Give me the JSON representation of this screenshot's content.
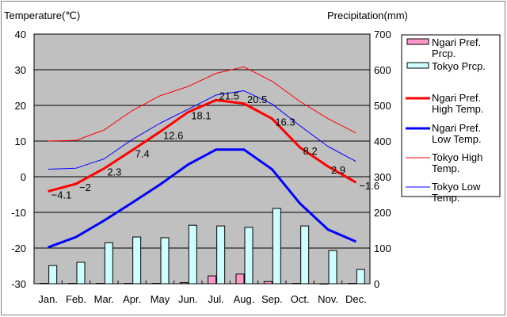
{
  "chart_data": {
    "type": "bar+line",
    "left_axis_title": "Temperature(℃)",
    "right_axis_title": "Precipitation(mm)",
    "categories": [
      "Jan.",
      "Feb.",
      "Mar.",
      "Apr.",
      "May",
      "Jun.",
      "Jul.",
      "Aug.",
      "Sep.",
      "Oct.",
      "Nov.",
      "Dec."
    ],
    "temp_ylim": [
      -30,
      40
    ],
    "temp_ticks": [
      "40",
      "30",
      "20",
      "10",
      "0",
      "-10",
      "-20",
      "-30"
    ],
    "precip_ylim": [
      0,
      700
    ],
    "precip_ticks": [
      "700",
      "600",
      "500",
      "400",
      "300",
      "200",
      "100",
      "0"
    ],
    "grid": true,
    "legend_position": "right",
    "bar_series": [
      {
        "name": "Ngari Pref. Prcp.",
        "color": "#ff99cc",
        "values": [
          1,
          1,
          1,
          1,
          1,
          3,
          22,
          27,
          6,
          1,
          0,
          1
        ]
      },
      {
        "name": "Tokyo Prcp.",
        "color": "#ccffff",
        "values": [
          51,
          60,
          115,
          131,
          129,
          164,
          162,
          158,
          211,
          162,
          93,
          40
        ]
      }
    ],
    "line_series": [
      {
        "name": "Ngari Pref. High Temp.",
        "color": "#ff0000",
        "thick": true,
        "labels": true,
        "values": [
          -4.1,
          -2,
          2.3,
          7.4,
          12.6,
          18.1,
          21.5,
          20.5,
          16.3,
          8.2,
          2.9,
          -1.6
        ]
      },
      {
        "name": "Ngari Pref. Low Temp.",
        "color": "#0000ff",
        "thick": true,
        "labels": false,
        "values": [
          -19.8,
          -16.9,
          -12.3,
          -7.3,
          -2.2,
          3.4,
          7.6,
          7.6,
          2.1,
          -7.5,
          -14.8,
          -18.2
        ]
      },
      {
        "name": "Tokyo High Temp.",
        "color": "#ff0000",
        "thick": false,
        "labels": false,
        "values": [
          10,
          10.2,
          13.1,
          18.5,
          22.7,
          25.3,
          29,
          30.8,
          26.8,
          21.1,
          16.3,
          12.3
        ]
      },
      {
        "name": "Tokyo Low Temp.",
        "color": "#0000ff",
        "thick": false,
        "labels": false,
        "values": [
          2.1,
          2.4,
          5,
          10.4,
          15,
          18.9,
          22.9,
          24.1,
          20.4,
          14.3,
          8.5,
          4.3
        ]
      }
    ],
    "legend": [
      {
        "label_line1": "Ngari Pref.",
        "label_line2": "Prcp."
      },
      {
        "label_line1": "Tokyo Prcp.",
        "label_line2": ""
      },
      {
        "label_line1": "Ngari Pref.",
        "label_line2": "High Temp."
      },
      {
        "label_line1": "Ngari Pref.",
        "label_line2": "Low Temp."
      },
      {
        "label_line1": "Tokyo High",
        "label_line2": "Temp."
      },
      {
        "label_line1": "Tokyo Low",
        "label_line2": "Temp."
      }
    ]
  }
}
